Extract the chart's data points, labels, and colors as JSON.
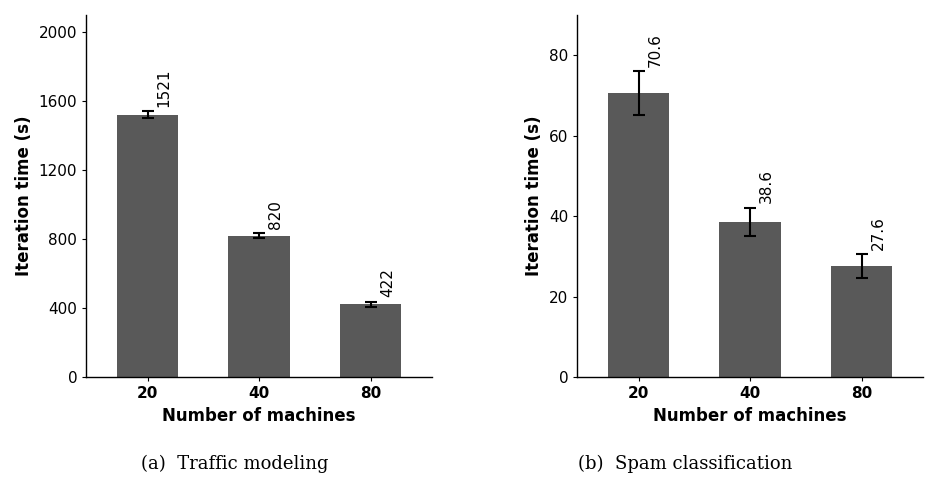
{
  "left_chart": {
    "categories": [
      "20",
      "40",
      "80"
    ],
    "values": [
      1521,
      820,
      422
    ],
    "errors": [
      20,
      15,
      15
    ],
    "bar_color": "#595959",
    "xlabel": "Number of machines",
    "ylabel": "Iteration time (s)",
    "ylim": [
      0,
      2100
    ],
    "yticks": [
      0,
      400,
      800,
      1200,
      1600,
      2000
    ],
    "labels": [
      "1521",
      "820",
      "422"
    ],
    "caption": "(a)  Traffic modeling"
  },
  "right_chart": {
    "categories": [
      "20",
      "40",
      "80"
    ],
    "values": [
      70.6,
      38.6,
      27.6
    ],
    "errors": [
      5.5,
      3.5,
      3.0
    ],
    "bar_color": "#595959",
    "xlabel": "Number of machines",
    "ylabel": "Iteration time (s)",
    "ylim": [
      0,
      90
    ],
    "yticks": [
      0,
      20,
      40,
      60,
      80
    ],
    "labels": [
      "70.6",
      "38.6",
      "27.6"
    ],
    "caption": "(b)  Spam classification"
  },
  "background_color": "#ffffff",
  "label_fontsize": 12,
  "tick_fontsize": 11,
  "caption_fontsize": 13,
  "bar_value_fontsize": 11,
  "bar_width": 0.55
}
